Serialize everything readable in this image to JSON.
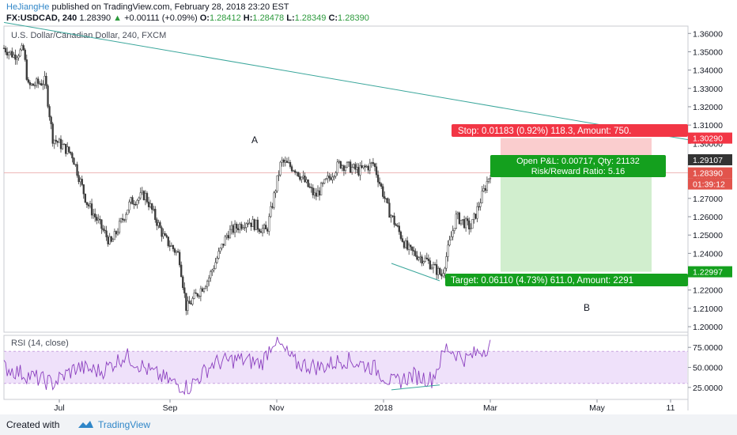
{
  "header": {
    "author": "HeJiangHe",
    "published_text": "published on TradingView.com, February 28, 2018 23:20 EST",
    "symbol": "FX:USDCAD, 240",
    "last": "1.28390",
    "change": "+0.00111 (+0.09%)",
    "o_label": "O:",
    "o": "1.28412",
    "h_label": "H:",
    "h": "1.28478",
    "l_label": "L:",
    "l": "1.28349",
    "c_label": "C:",
    "c": "1.28390"
  },
  "footer": {
    "created_with": "Created with",
    "brand": "TradingView"
  },
  "colors": {
    "up_candle": "#3b3b3b",
    "rsi_line": "#8b3fbf",
    "rsi_band": "#efe1fa",
    "stop_red": "#f23645",
    "target_green": "#14a01e",
    "trendline": "#3aa69b"
  },
  "chart_data": [
    {
      "type": "candlestick",
      "title": "U.S. Dollar/Canadian Dollar, 240, FXCM",
      "x_ticks": [
        "Jul",
        "Sep",
        "Nov",
        "2018",
        "Mar",
        "May",
        "11"
      ],
      "y_ticks": [
        "1.36000",
        "1.35000",
        "1.34000",
        "1.33000",
        "1.32000",
        "1.31000",
        "1.30000",
        "1.29000",
        "1.28000",
        "1.27000",
        "1.26000",
        "1.25000",
        "1.24000",
        "1.23000",
        "1.22000",
        "1.21000",
        "1.20000"
      ],
      "ylim": [
        1.197,
        1.364
      ],
      "price_path_keypoints": [
        {
          "t": 0.0,
          "v": 1.352
        },
        {
          "t": 0.02,
          "v": 1.348
        },
        {
          "t": 0.04,
          "v": 1.351
        },
        {
          "t": 0.05,
          "v": 1.331
        },
        {
          "t": 0.085,
          "v": 1.334
        },
        {
          "t": 0.1,
          "v": 1.303
        },
        {
          "t": 0.14,
          "v": 1.294
        },
        {
          "t": 0.17,
          "v": 1.268
        },
        {
          "t": 0.22,
          "v": 1.245
        },
        {
          "t": 0.26,
          "v": 1.268
        },
        {
          "t": 0.29,
          "v": 1.272
        },
        {
          "t": 0.33,
          "v": 1.248
        },
        {
          "t": 0.36,
          "v": 1.239
        },
        {
          "t": 0.375,
          "v": 1.21
        },
        {
          "t": 0.42,
          "v": 1.226
        },
        {
          "t": 0.46,
          "v": 1.251
        },
        {
          "t": 0.5,
          "v": 1.258
        },
        {
          "t": 0.54,
          "v": 1.252
        },
        {
          "t": 0.57,
          "v": 1.29
        },
        {
          "t": 0.6,
          "v": 1.286
        },
        {
          "t": 0.64,
          "v": 1.271
        },
        {
          "t": 0.69,
          "v": 1.289
        },
        {
          "t": 0.73,
          "v": 1.285
        },
        {
          "t": 0.76,
          "v": 1.289
        },
        {
          "t": 0.79,
          "v": 1.264
        },
        {
          "t": 0.83,
          "v": 1.242
        },
        {
          "t": 0.87,
          "v": 1.236
        },
        {
          "t": 0.9,
          "v": 1.228
        },
        {
          "t": 0.93,
          "v": 1.26
        },
        {
          "t": 0.96,
          "v": 1.254
        },
        {
          "t": 1.0,
          "v": 1.284
        }
      ],
      "annotations": {
        "label_a": "A",
        "label_b": "B",
        "stop_text": "Stop: 0.01183 (0.92%) 118.3, Amount: 750.",
        "open_pl_line1": "Open P&L: 0.00717, Qty: 21132",
        "open_pl_line2": "Risk/Reward Ratio: 5.16",
        "target_text": "Target: 0.06110 (4.73%) 611.0, Amount: 2291",
        "stop_price": 1.3029,
        "entry_price": 1.2911,
        "target_price": 1.22997,
        "price_tags": [
          "1.30290",
          "1.29107",
          "1.28390",
          "01:39:12",
          "1.22997"
        ]
      },
      "trendline": {
        "from": [
          0.0,
          1.366
        ],
        "to": [
          1.0,
          1.302
        ]
      }
    },
    {
      "type": "line",
      "title": "RSI (14, close)",
      "y_ticks": [
        "75.0000",
        "50.0000",
        "25.0000"
      ],
      "ylim": [
        10,
        90
      ],
      "band": [
        30,
        70
      ],
      "rsi_keypoints": [
        {
          "t": 0.0,
          "v": 50
        },
        {
          "t": 0.05,
          "v": 40
        },
        {
          "t": 0.1,
          "v": 30
        },
        {
          "t": 0.15,
          "v": 50
        },
        {
          "t": 0.2,
          "v": 45
        },
        {
          "t": 0.25,
          "v": 65
        },
        {
          "t": 0.3,
          "v": 45
        },
        {
          "t": 0.35,
          "v": 30
        },
        {
          "t": 0.38,
          "v": 25
        },
        {
          "t": 0.43,
          "v": 55
        },
        {
          "t": 0.48,
          "v": 60
        },
        {
          "t": 0.53,
          "v": 55
        },
        {
          "t": 0.555,
          "v": 85
        },
        {
          "t": 0.6,
          "v": 55
        },
        {
          "t": 0.65,
          "v": 50
        },
        {
          "t": 0.7,
          "v": 60
        },
        {
          "t": 0.76,
          "v": 50
        },
        {
          "t": 0.8,
          "v": 30
        },
        {
          "t": 0.84,
          "v": 40
        },
        {
          "t": 0.88,
          "v": 35
        },
        {
          "t": 0.91,
          "v": 75
        },
        {
          "t": 0.95,
          "v": 60
        },
        {
          "t": 1.0,
          "v": 78
        }
      ]
    }
  ]
}
